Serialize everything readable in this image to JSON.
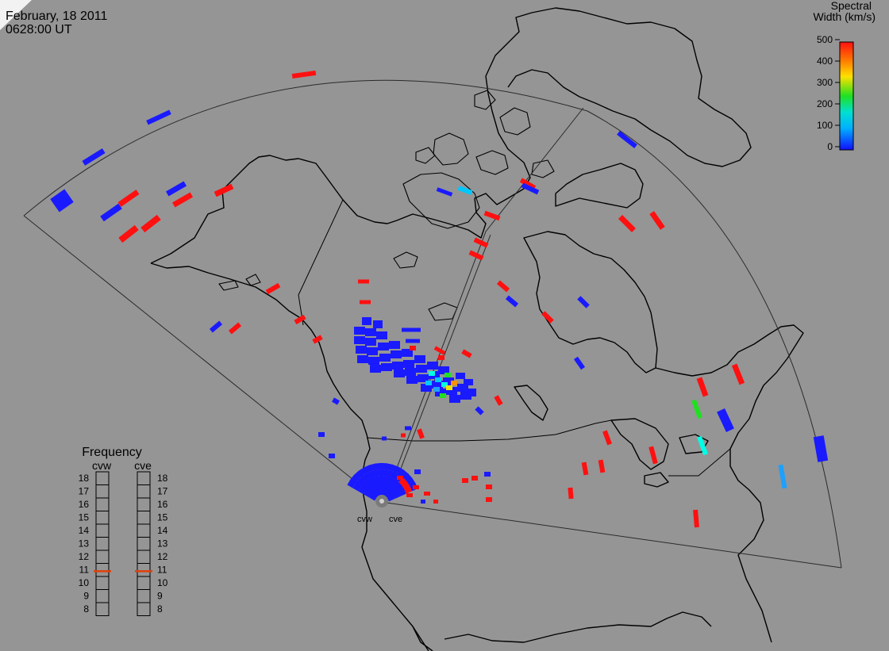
{
  "header": {
    "date": "February, 18 2011",
    "time": "0628:00 UT"
  },
  "colorbar": {
    "title_line1": "Spectral",
    "title_line2": "Width (km/s)",
    "ticks": [
      "500",
      "400",
      "300",
      "200",
      "100",
      "0"
    ]
  },
  "frequency": {
    "title": "Frequency",
    "left_label": "cvw",
    "right_label": "cve",
    "ticks": [
      "18",
      "17",
      "16",
      "15",
      "14",
      "13",
      "12",
      "11",
      "10",
      "9",
      "8"
    ],
    "cvw_value_mhz": 10.9,
    "cve_value_mhz": 10.9,
    "indicator_color": "#e0400a"
  },
  "radars": {
    "left": "cvw",
    "right": "cve"
  },
  "colors": {
    "background": "#959595",
    "scale_low": "#1a1aff",
    "scale_high": "#ff1010"
  }
}
